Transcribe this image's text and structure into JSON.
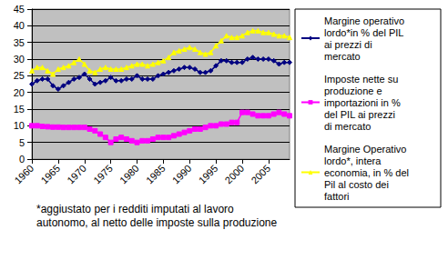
{
  "chart_data": {
    "type": "line",
    "annotation": "*aggiustato per i redditi imputati al lavoro autonomo, al netto delle imposte sulla produzione",
    "x": [
      1960,
      1961,
      1962,
      1963,
      1964,
      1965,
      1966,
      1967,
      1968,
      1969,
      1970,
      1971,
      1972,
      1973,
      1974,
      1975,
      1976,
      1977,
      1978,
      1979,
      1980,
      1981,
      1982,
      1983,
      1984,
      1985,
      1986,
      1987,
      1988,
      1989,
      1990,
      1991,
      1992,
      1993,
      1994,
      1995,
      1996,
      1997,
      1998,
      1999,
      2000,
      2001,
      2002,
      2003,
      2004,
      2005,
      2006,
      2007,
      2008,
      2009
    ],
    "xlim": [
      1960,
      2009
    ],
    "xticks": [
      1960,
      1965,
      1970,
      1975,
      1980,
      1985,
      1990,
      1995,
      2000,
      2005
    ],
    "ylim": [
      0,
      45
    ],
    "yticks": [
      0,
      5,
      10,
      15,
      20,
      25,
      30,
      35,
      40,
      45
    ],
    "grid": true,
    "legend": "right",
    "series": [
      {
        "name": "Margine operativo lordo*in % del PIL ai prezzi di mercato",
        "color": "#000080",
        "marker": "diamond",
        "values": [
          22.5,
          23.5,
          24,
          24,
          22,
          21,
          22,
          23,
          24,
          24.5,
          25.5,
          24,
          22.5,
          23,
          23.5,
          24.5,
          23.5,
          23.5,
          24,
          24,
          25,
          24,
          24,
          24,
          25,
          25.5,
          26,
          26.5,
          27,
          27.5,
          27.5,
          27,
          26,
          26,
          26.5,
          28,
          29.5,
          29.5,
          29,
          29,
          29,
          30,
          30.5,
          30,
          30,
          30,
          29.5,
          28.5,
          29,
          29
        ]
      },
      {
        "name": "Imposte nette su produzione e importazioni in % del PIL ai prezzi di mercato",
        "color": "#ff00ff",
        "marker": "square",
        "values": [
          10,
          10,
          9.8,
          9.7,
          9.6,
          9.6,
          9.5,
          9.5,
          9.5,
          9.5,
          9.5,
          9,
          8.5,
          7.5,
          6.5,
          5,
          6,
          6.5,
          6,
          5.5,
          5,
          5.5,
          5.5,
          6,
          6.5,
          6.5,
          6.5,
          7,
          7.5,
          8,
          8.5,
          9,
          9,
          9.5,
          10,
          10,
          10.5,
          10.5,
          11,
          11,
          14,
          14,
          13.5,
          13,
          13,
          13,
          13.5,
          14,
          13.5,
          13
        ]
      },
      {
        "name": "Margine Operativo lordo*, intera economia, in % del Pil al costo dei fattori",
        "color": "#ffff00",
        "marker": "triangle",
        "values": [
          26.5,
          27.5,
          27.5,
          26.5,
          25.5,
          27,
          27.5,
          28,
          29,
          30,
          28.5,
          26.5,
          26,
          27,
          27.5,
          27,
          27,
          27,
          27.5,
          28,
          28.5,
          28.5,
          28,
          28.5,
          29,
          29.5,
          30.5,
          32,
          32.5,
          33,
          33.5,
          33,
          32,
          31.5,
          32,
          34,
          35.5,
          37,
          36.5,
          36.5,
          37,
          38,
          38.5,
          38.5,
          38,
          38,
          37.5,
          37,
          37,
          36.5
        ]
      }
    ]
  }
}
